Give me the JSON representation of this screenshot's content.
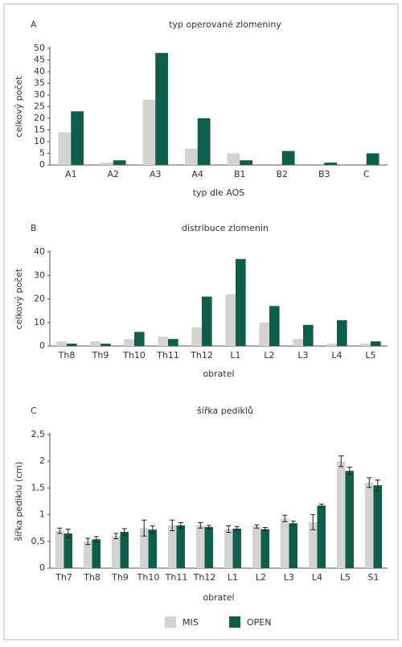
{
  "chart_data": [
    {
      "type": "bar",
      "panel": "A",
      "title": "typ operované zlomeniny",
      "ylabel": "celkový počet",
      "xlabel": "typ dle AOS",
      "categories": [
        "A1",
        "A2",
        "A3",
        "A4",
        "B1",
        "B2",
        "B3",
        "C"
      ],
      "series": [
        {
          "name": "MIS",
          "color": "#d3d3d1",
          "values": [
            14,
            1,
            28,
            7,
            5,
            0,
            0,
            0
          ]
        },
        {
          "name": "OPEN",
          "color": "#0d5e4b",
          "values": [
            23,
            2,
            48,
            20,
            2,
            6,
            1,
            5
          ]
        }
      ],
      "ylim": [
        0,
        50
      ],
      "yticks": [
        0,
        5,
        10,
        15,
        20,
        25,
        30,
        35,
        40,
        45,
        50
      ],
      "grid": false
    },
    {
      "type": "bar",
      "panel": "B",
      "title": "distribuce zlomenin",
      "ylabel": "celkový počet",
      "xlabel": "obratel",
      "categories": [
        "Th8",
        "Th9",
        "Th10",
        "Th11",
        "Th12",
        "L1",
        "L2",
        "L3",
        "L4",
        "L5"
      ],
      "series": [
        {
          "name": "MIS",
          "color": "#d3d3d1",
          "values": [
            2,
            2,
            3,
            4,
            8,
            22,
            10,
            3,
            1,
            1
          ]
        },
        {
          "name": "OPEN",
          "color": "#0d5e4b",
          "values": [
            1,
            1,
            6,
            3,
            21,
            37,
            17,
            9,
            11,
            2
          ]
        }
      ],
      "ylim": [
        0,
        40
      ],
      "yticks": [
        0,
        10,
        20,
        30,
        40
      ],
      "grid": false
    },
    {
      "type": "bar",
      "panel": "C",
      "title": "šířka pediklů",
      "ylabel": "šířka pediklu (cm)",
      "xlabel": "obratel",
      "categories": [
        "Th7",
        "Th8",
        "Th9",
        "Th10",
        "Th11",
        "Th12",
        "L1",
        "L2",
        "L3",
        "L4",
        "L5",
        "S1"
      ],
      "series": [
        {
          "name": "MIS",
          "color": "#d3d3d1",
          "values": [
            0.7,
            0.5,
            0.6,
            0.75,
            0.8,
            0.8,
            0.73,
            0.78,
            0.93,
            0.86,
            2.0,
            1.6
          ],
          "error": [
            0.05,
            0.06,
            0.05,
            0.15,
            0.1,
            0.05,
            0.06,
            0.03,
            0.06,
            0.14,
            0.1,
            0.09
          ]
        },
        {
          "name": "OPEN",
          "color": "#0d5e4b",
          "values": [
            0.65,
            0.54,
            0.68,
            0.72,
            0.8,
            0.77,
            0.74,
            0.73,
            0.84,
            1.17,
            1.82,
            1.55
          ],
          "error": [
            0.08,
            0.05,
            0.06,
            0.07,
            0.05,
            0.03,
            0.04,
            0.03,
            0.04,
            0.03,
            0.07,
            0.1
          ]
        }
      ],
      "ylim": [
        0,
        2.5
      ],
      "yticks": [
        0,
        {
          "value": 0.5,
          "label": "0,5"
        },
        1,
        {
          "value": 1.5,
          "label": "1,5"
        },
        2,
        {
          "value": 2.5,
          "label": "2,5"
        }
      ],
      "grid": false
    }
  ]
}
